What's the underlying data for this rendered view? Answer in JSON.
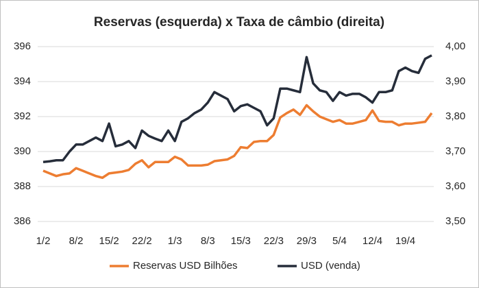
{
  "chart_data": {
    "type": "line",
    "title": "Reservas (esquerda) x Taxa de câmbio  (direita)",
    "categories": [
      "1/2",
      null,
      null,
      null,
      null,
      "8/2",
      null,
      null,
      null,
      null,
      "15/2",
      null,
      null,
      null,
      null,
      "22/2",
      null,
      null,
      null,
      null,
      "1/3",
      null,
      null,
      null,
      null,
      "8/3",
      null,
      null,
      null,
      null,
      "15/3",
      null,
      null,
      null,
      null,
      "22/3",
      null,
      null,
      null,
      null,
      "29/3",
      null,
      null,
      null,
      null,
      "5/4",
      null,
      null,
      null,
      null,
      "12/4",
      null,
      null,
      null,
      null,
      "19/4",
      null,
      null,
      null,
      null
    ],
    "series": [
      {
        "name": "Reservas USD Bilhões",
        "color": "#ed7d31",
        "axis": "y",
        "values": [
          388.9,
          388.75,
          388.6,
          388.7,
          388.75,
          389.05,
          388.9,
          388.75,
          388.6,
          388.5,
          388.75,
          388.8,
          388.85,
          388.95,
          389.3,
          389.5,
          389.1,
          389.4,
          389.4,
          389.4,
          389.7,
          389.55,
          389.2,
          389.2,
          389.2,
          389.25,
          389.45,
          389.5,
          389.55,
          389.75,
          390.25,
          390.2,
          390.55,
          390.6,
          390.6,
          390.95,
          391.95,
          392.2,
          392.4,
          392.1,
          392.65,
          392.3,
          392.0,
          391.85,
          391.7,
          391.8,
          391.6,
          391.6,
          391.7,
          391.8,
          392.35,
          391.75,
          391.7,
          391.7,
          391.5,
          391.6,
          391.6,
          391.65,
          391.7,
          392.2
        ]
      },
      {
        "name": "USD (venda)",
        "color": "#262d3a",
        "axis": "y2",
        "values": [
          3.67,
          3.672,
          3.675,
          3.675,
          3.7,
          3.72,
          3.72,
          3.73,
          3.74,
          3.73,
          3.78,
          3.715,
          3.72,
          3.73,
          3.71,
          3.76,
          3.745,
          3.737,
          3.73,
          3.76,
          3.73,
          3.785,
          3.795,
          3.81,
          3.82,
          3.84,
          3.87,
          3.86,
          3.85,
          3.815,
          3.83,
          3.835,
          3.825,
          3.815,
          3.775,
          3.795,
          3.88,
          3.88,
          3.875,
          3.87,
          3.97,
          3.895,
          3.875,
          3.87,
          3.845,
          3.87,
          3.86,
          3.865,
          3.865,
          3.855,
          3.84,
          3.87,
          3.87,
          3.875,
          3.93,
          3.94,
          3.93,
          3.925,
          3.965,
          3.975
        ]
      }
    ],
    "ylim": [
      386,
      396
    ],
    "yticks": [
      386,
      388,
      390,
      392,
      394,
      396
    ],
    "y2lim": [
      3.5,
      4.0
    ],
    "y2ticks": [
      {
        "value": 3.5,
        "label": "3,50"
      },
      {
        "value": 3.6,
        "label": "3,60"
      },
      {
        "value": 3.7,
        "label": "3,70"
      },
      {
        "value": 3.8,
        "label": "3,80"
      },
      {
        "value": 3.9,
        "label": "3,90"
      },
      {
        "value": 4.0,
        "label": "4,00"
      }
    ],
    "grid": true,
    "legend": "bottom"
  }
}
